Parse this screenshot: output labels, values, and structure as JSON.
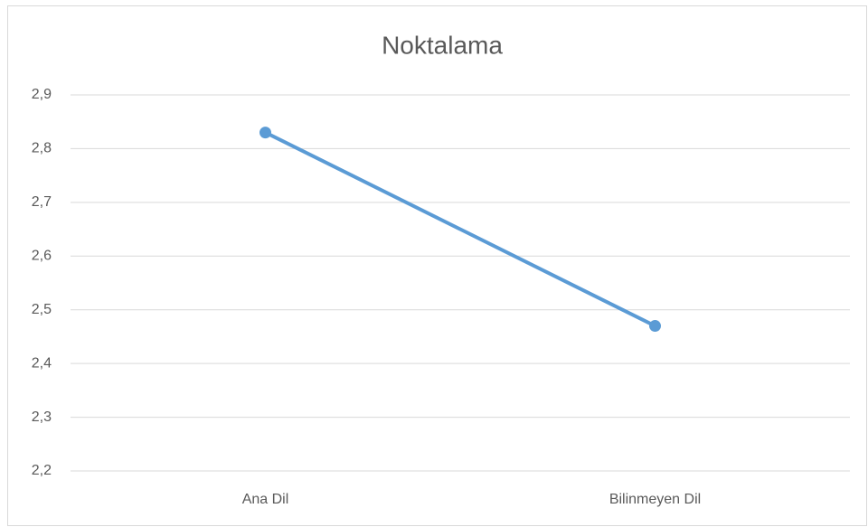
{
  "chart_data": {
    "type": "line",
    "title": "Noktalama",
    "categories": [
      "Ana Dil",
      "Bilinmeyen Dil"
    ],
    "series": [
      {
        "name": "Noktalama",
        "color": "#5b9bd5",
        "values": [
          2.83,
          2.47
        ]
      }
    ],
    "ylim": [
      2.2,
      2.9
    ],
    "yticks": [
      {
        "value": 2.2,
        "label": "2,2"
      },
      {
        "value": 2.3,
        "label": "2,3"
      },
      {
        "value": 2.4,
        "label": "2,4"
      },
      {
        "value": 2.5,
        "label": "2,5"
      },
      {
        "value": 2.6,
        "label": "2,6"
      },
      {
        "value": 2.7,
        "label": "2,7"
      },
      {
        "value": 2.8,
        "label": "2,8"
      },
      {
        "value": 2.9,
        "label": "2,9"
      }
    ],
    "grid": true
  }
}
